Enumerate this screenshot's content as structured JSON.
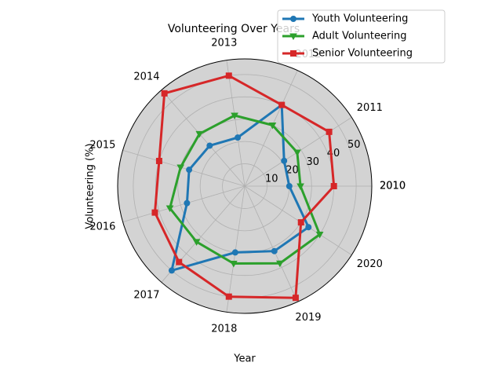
{
  "chart_data": {
    "type": "radar",
    "title": "Volunteering Over Years",
    "xlabel": "Year",
    "ylabel": "Volunteering (%)",
    "categories": [
      "2010",
      "2011",
      "2012",
      "2013",
      "2014",
      "2015",
      "2016",
      "2017",
      "2018",
      "2019",
      "2020"
    ],
    "series": [
      {
        "name": "Youth Volunteering",
        "color": "#1f77b4",
        "marker": "circle",
        "values": [
          20,
          21,
          40,
          22,
          24,
          26,
          27,
          50,
          30,
          32,
          34
        ]
      },
      {
        "name": "Adult Volunteering",
        "color": "#2ca02c",
        "marker": "triangle-down",
        "values": [
          25,
          28,
          30,
          32,
          31,
          30,
          35,
          33,
          35,
          38,
          40
        ]
      },
      {
        "name": "Senior Volunteering",
        "color": "#d62728",
        "marker": "square",
        "values": [
          40,
          45,
          40,
          50,
          55,
          40,
          42,
          45,
          50,
          55,
          30
        ]
      }
    ],
    "ylim": [
      0,
      57
    ],
    "yticks": [
      10,
      20,
      30,
      40,
      50
    ],
    "grid": true,
    "legend": "upper right"
  }
}
